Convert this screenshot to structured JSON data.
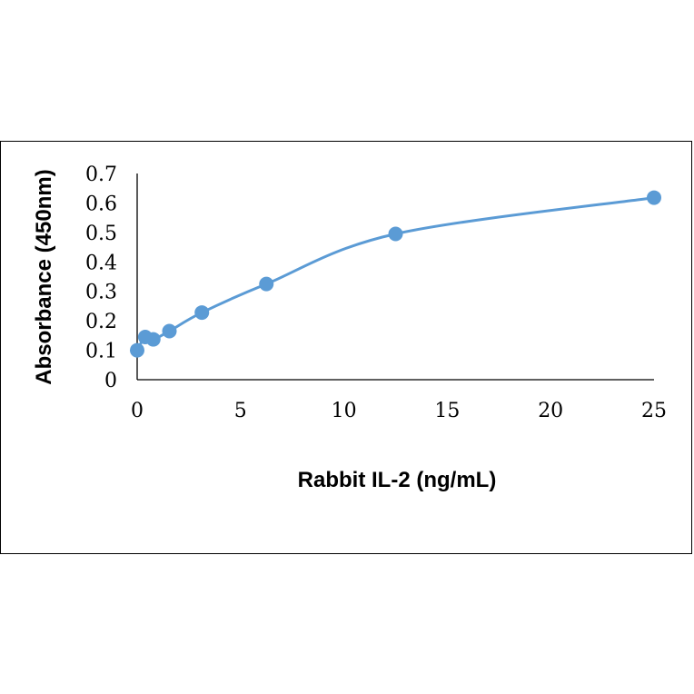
{
  "chart_data": {
    "type": "scatter",
    "title": "",
    "xlabel": "Rabbit IL-2 (ng/mL)",
    "ylabel": "Absorbance (450nm)",
    "xlim": [
      0,
      25
    ],
    "ylim": [
      0,
      0.7
    ],
    "x_ticks": [
      "0",
      "5",
      "10",
      "15",
      "20",
      "25"
    ],
    "y_ticks": [
      "0",
      "0.1",
      "0.2",
      "0.3",
      "0.4",
      "0.5",
      "0.6",
      "0.7"
    ],
    "grid": false,
    "legend": "none",
    "smooth_line": true,
    "series_color": "#5b9bd5",
    "series": [
      {
        "x": [
          0,
          0.39,
          0.78,
          1.56,
          3.13,
          6.25,
          12.5,
          25
        ],
        "y": [
          0.1,
          0.145,
          0.137,
          0.165,
          0.228,
          0.325,
          0.495,
          0.618
        ]
      }
    ]
  }
}
